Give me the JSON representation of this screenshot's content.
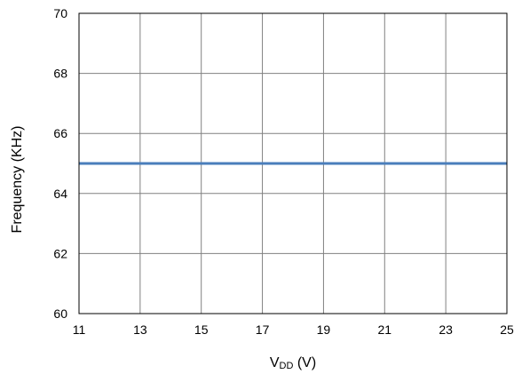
{
  "chart_data": {
    "type": "line",
    "title": "",
    "xlabel": {
      "main": "V",
      "subscript": "DD",
      "unit": " (V)"
    },
    "ylabel": "Frequency (KHz)",
    "xlim": [
      11,
      25
    ],
    "ylim": [
      60,
      70
    ],
    "xticks": [
      11,
      13,
      15,
      17,
      19,
      21,
      23,
      25
    ],
    "yticks": [
      60,
      62,
      64,
      66,
      68,
      70
    ],
    "grid": true,
    "legend": "none",
    "series": [
      {
        "x": [
          11,
          13,
          15,
          17,
          19,
          21,
          23,
          25
        ],
        "y": [
          65,
          65,
          65,
          65,
          65,
          65,
          65,
          65
        ],
        "color": "#4a7ebb"
      }
    ],
    "colors": {
      "grid": "#808080",
      "frame": "#000000",
      "line": "#4a7ebb"
    }
  }
}
